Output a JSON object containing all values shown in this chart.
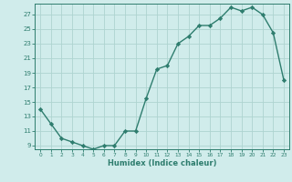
{
  "x": [
    0,
    1,
    2,
    3,
    4,
    5,
    6,
    7,
    8,
    9,
    10,
    11,
    12,
    13,
    14,
    15,
    16,
    17,
    18,
    19,
    20,
    21,
    22,
    23
  ],
  "y": [
    14,
    12,
    10,
    9.5,
    9,
    8.5,
    9,
    9,
    11,
    11,
    15.5,
    19.5,
    20,
    23,
    24,
    25.5,
    25.5,
    26.5,
    28,
    27.5,
    28,
    27,
    24.5,
    18
  ],
  "line_color": "#2e7d6e",
  "marker_color": "#2e7d6e",
  "bg_color": "#d0eceb",
  "grid_color": "#aed4d0",
  "xlabel": "Humidex (Indice chaleur)",
  "xlim": [
    -0.5,
    23.5
  ],
  "ylim": [
    8.5,
    28.5
  ],
  "yticks": [
    9,
    11,
    13,
    15,
    17,
    19,
    21,
    23,
    25,
    27
  ],
  "xticks": [
    0,
    1,
    2,
    3,
    4,
    5,
    6,
    7,
    8,
    9,
    10,
    11,
    12,
    13,
    14,
    15,
    16,
    17,
    18,
    19,
    20,
    21,
    22,
    23
  ]
}
